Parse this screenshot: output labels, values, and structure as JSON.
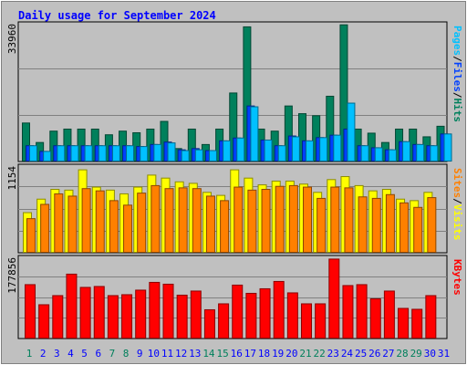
{
  "title": "Daily usage for September 2024",
  "right_labels": {
    "top": [
      {
        "text": "Pages",
        "color": "#00c0ff"
      },
      {
        "text": "/",
        "color": "#000000"
      },
      {
        "text": "Files",
        "color": "#0040ff"
      },
      {
        "text": "/",
        "color": "#000000"
      },
      {
        "text": "Hits",
        "color": "#00805c"
      }
    ],
    "mid": [
      {
        "text": "Sites",
        "color": "#ff8000"
      },
      {
        "text": "/",
        "color": "#000000"
      },
      {
        "text": "Visits",
        "color": "#ffff00"
      }
    ],
    "bot": [
      {
        "text": "KBytes",
        "color": "#ff0000"
      }
    ]
  },
  "colors": {
    "background": "#c0c0c0",
    "title": "#0000ff",
    "hits": "#00805c",
    "files": "#0040ff",
    "pages": "#00c0ff",
    "visits": "#ffff00",
    "sites": "#ff8000",
    "kbytes": "#ff0000",
    "weekend_label": "#00805c",
    "weekday_label": "#0000ff"
  },
  "chart_data": [
    {
      "type": "bar",
      "panel": "top",
      "ymax_label": "33960",
      "ylim": [
        0,
        33960
      ],
      "categories": [
        "1",
        "2",
        "3",
        "4",
        "5",
        "6",
        "7",
        "8",
        "9",
        "10",
        "11",
        "12",
        "13",
        "14",
        "15",
        "16",
        "17",
        "18",
        "19",
        "20",
        "21",
        "22",
        "23",
        "24",
        "25",
        "26",
        "27",
        "28",
        "29",
        "30",
        "31"
      ],
      "weekend_days": [
        "1",
        "7",
        "8",
        "14",
        "15",
        "21",
        "22",
        "28",
        "29"
      ],
      "series": [
        {
          "name": "Hits",
          "values": [
            9600,
            4800,
            7600,
            8100,
            8100,
            8100,
            6700,
            7600,
            7200,
            8100,
            10000,
            3300,
            8100,
            4300,
            8100,
            17000,
            33300,
            8100,
            7600,
            13800,
            11900,
            11400,
            16200,
            33800,
            8100,
            7100,
            4800,
            8100,
            8100,
            6200,
            8800
          ]
        },
        {
          "name": "Files",
          "values": [
            4000,
            2600,
            4000,
            4000,
            4000,
            4000,
            4000,
            4000,
            3800,
            4300,
            4900,
            3000,
            3300,
            2800,
            5200,
            5900,
            13800,
            5400,
            4000,
            6400,
            5200,
            6000,
            6600,
            8100,
            4000,
            3500,
            3000,
            5000,
            4300,
            4000,
            6900
          ]
        },
        {
          "name": "Pages",
          "values": [
            4000,
            2600,
            4000,
            4000,
            4000,
            4000,
            4000,
            4000,
            3800,
            4300,
            4700,
            2800,
            3000,
            2800,
            5200,
            5900,
            13600,
            5400,
            4000,
            6200,
            5200,
            6000,
            6600,
            14500,
            4000,
            3500,
            3000,
            5000,
            4300,
            4000,
            6900
          ]
        }
      ]
    },
    {
      "type": "bar",
      "panel": "middle",
      "ymax_label": "1154",
      "ylim": [
        0,
        1154
      ],
      "categories": [
        "1",
        "2",
        "3",
        "4",
        "5",
        "6",
        "7",
        "8",
        "9",
        "10",
        "11",
        "12",
        "13",
        "14",
        "15",
        "16",
        "17",
        "18",
        "19",
        "20",
        "21",
        "22",
        "23",
        "24",
        "25",
        "26",
        "27",
        "28",
        "29",
        "30",
        "31"
      ],
      "weekend_days": [
        "1",
        "7",
        "8",
        "14",
        "15",
        "21",
        "22",
        "28",
        "29"
      ],
      "series": [
        {
          "name": "Visits",
          "values": [
            540,
            720,
            850,
            840,
            1110,
            880,
            840,
            790,
            880,
            1040,
            1000,
            950,
            930,
            810,
            770,
            1110,
            1000,
            910,
            960,
            960,
            920,
            810,
            980,
            1020,
            900,
            830,
            850,
            720,
            700,
            810,
            0
          ]
        },
        {
          "name": "Sites",
          "values": [
            460,
            650,
            790,
            760,
            860,
            830,
            700,
            640,
            800,
            900,
            860,
            870,
            860,
            760,
            700,
            880,
            840,
            850,
            890,
            900,
            880,
            730,
            880,
            870,
            750,
            730,
            780,
            670,
            610,
            740,
            0
          ]
        }
      ]
    },
    {
      "type": "bar",
      "panel": "bottom",
      "ymax_label": "177856",
      "ylim": [
        0,
        177856
      ],
      "categories": [
        "1",
        "2",
        "3",
        "4",
        "5",
        "6",
        "7",
        "8",
        "9",
        "10",
        "11",
        "12",
        "13",
        "14",
        "15",
        "16",
        "17",
        "18",
        "19",
        "20",
        "21",
        "22",
        "23",
        "24",
        "25",
        "26",
        "27",
        "28",
        "29",
        "30",
        "31"
      ],
      "weekend_days": [
        "1",
        "7",
        "8",
        "14",
        "15",
        "21",
        "22",
        "28",
        "29"
      ],
      "series": [
        {
          "name": "KBytes",
          "values": [
            119000,
            75000,
            95000,
            142000,
            113000,
            115000,
            95000,
            97000,
            107000,
            124000,
            120000,
            96000,
            105000,
            64000,
            77000,
            118000,
            100000,
            110000,
            126000,
            101000,
            77000,
            77000,
            175000,
            117000,
            119000,
            88000,
            105000,
            67000,
            65000,
            95000,
            0
          ]
        }
      ]
    }
  ]
}
